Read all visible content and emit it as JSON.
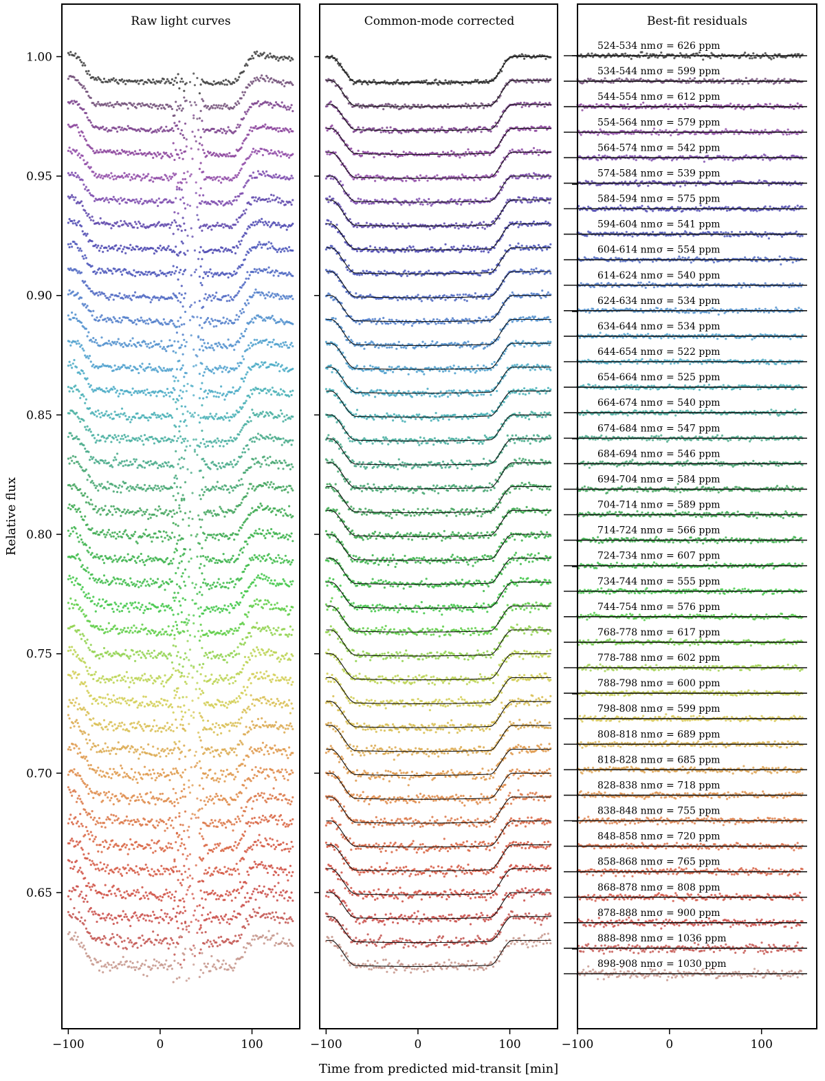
{
  "figure": {
    "ylabel": "Relative flux",
    "xlabel": "Time from predicted mid-transit [min]"
  },
  "chart_data": [
    {
      "type": "scatter",
      "title": "Raw light curves",
      "xlabel": "",
      "ylabel": "Relative flux",
      "xlim": [
        -107,
        152
      ],
      "ylim": [
        0.593,
        1.022
      ],
      "x_ticks": [
        -100,
        0,
        100
      ],
      "x_tick_labels": [
        "−100",
        "0",
        "100"
      ],
      "y_ticks": [
        0.65,
        0.7,
        0.75,
        0.8,
        0.85,
        0.9,
        0.95,
        1.0
      ],
      "y_tick_labels": [
        "0.65",
        "0.70",
        "0.75",
        "0.80",
        "0.85",
        "0.90",
        "0.95",
        "1.00"
      ],
      "grid": false,
      "time_coverage_min": [
        -100,
        145
      ],
      "data_gap_min": [
        28,
        42
      ],
      "ingress_min": [
        -95,
        -68
      ],
      "egress_min": [
        78,
        103
      ],
      "offset_baselines": [
        1.0,
        0.99,
        0.98,
        0.97,
        0.96,
        0.95,
        0.94,
        0.93,
        0.92,
        0.91,
        0.9,
        0.89,
        0.88,
        0.87,
        0.86,
        0.85,
        0.84,
        0.83,
        0.82,
        0.81,
        0.8,
        0.79,
        0.78,
        0.77,
        0.76,
        0.75,
        0.74,
        0.73,
        0.72,
        0.71,
        0.7,
        0.69,
        0.68,
        0.67,
        0.66,
        0.65,
        0.64,
        0.63
      ],
      "transit_depth": 0.0105,
      "colors": [
        "#3b3b3b",
        "#6e4b76",
        "#7a3f8c",
        "#88409a",
        "#8e48a6",
        "#7b49ad",
        "#5c44aa",
        "#4a45b0",
        "#4852b8",
        "#4c66c2",
        "#4e7bc9",
        "#4d8ecc",
        "#4b9fcc",
        "#46a9c4",
        "#43aeb4",
        "#43ad9e",
        "#43a886",
        "#42a46f",
        "#3fa35a",
        "#38a84c",
        "#36b047",
        "#39ba45",
        "#3dc544",
        "#5ccc43",
        "#8ed14a",
        "#bad24e",
        "#d1cc50",
        "#d8bd4f",
        "#dba84c",
        "#de9748",
        "#de8846",
        "#db7443",
        "#d86340",
        "#d4563f",
        "#cf4c40",
        "#c94a45",
        "#c2524d",
        "#c4948a"
      ]
    },
    {
      "type": "scatter",
      "title": "Common-mode corrected",
      "xlabel": "",
      "xlim": [
        -107,
        152
      ],
      "ylim": [
        0.593,
        1.022
      ],
      "x_ticks": [
        -100,
        0,
        100
      ],
      "x_tick_labels": [
        "−100",
        "0",
        "100"
      ],
      "y_ticks": [
        0.65,
        0.7,
        0.75,
        0.8,
        0.85,
        0.9,
        0.95,
        1.0
      ],
      "grid": false,
      "model_line_color": "#111111",
      "time_coverage_min": [
        -100,
        145
      ],
      "offset_baselines": [
        1.0,
        0.99,
        0.98,
        0.97,
        0.96,
        0.95,
        0.94,
        0.93,
        0.92,
        0.91,
        0.9,
        0.89,
        0.88,
        0.87,
        0.86,
        0.85,
        0.84,
        0.83,
        0.82,
        0.81,
        0.8,
        0.79,
        0.78,
        0.77,
        0.76,
        0.75,
        0.74,
        0.73,
        0.72,
        0.71,
        0.7,
        0.69,
        0.68,
        0.67,
        0.66,
        0.65,
        0.64,
        0.63
      ],
      "transit_depth": 0.0105
    },
    {
      "type": "scatter",
      "title": "Best-fit residuals",
      "xlabel": "",
      "xlim": [
        -100,
        160
      ],
      "x_ticks": [
        -100,
        0,
        100
      ],
      "x_tick_labels": [
        "−100",
        "0",
        "100"
      ],
      "grid": false,
      "zero_line_color": "#111111",
      "bands": [
        "524-534 nm",
        "534-544 nm",
        "544-554 nm",
        "554-564 nm",
        "564-574 nm",
        "574-584 nm",
        "584-594 nm",
        "594-604 nm",
        "604-614 nm",
        "614-624 nm",
        "624-634 nm",
        "634-644 nm",
        "644-654 nm",
        "654-664 nm",
        "664-674 nm",
        "674-684 nm",
        "684-694 nm",
        "694-704 nm",
        "704-714 nm",
        "714-724 nm",
        "724-734 nm",
        "734-744 nm",
        "744-754 nm",
        "768-778 nm",
        "778-788 nm",
        "788-798 nm",
        "798-808 nm",
        "808-818 nm",
        "818-828 nm",
        "828-838 nm",
        "838-848 nm",
        "848-858 nm",
        "858-868 nm",
        "868-878 nm",
        "878-888 nm",
        "888-898 nm",
        "898-908 nm"
      ],
      "sigma_labels": [
        "σ = 626 ppm",
        "σ = 599 ppm",
        "σ = 612 ppm",
        "σ = 579 ppm",
        "σ = 542 ppm",
        "σ = 539 ppm",
        "σ = 575 ppm",
        "σ = 541 ppm",
        "σ = 554 ppm",
        "σ = 540 ppm",
        "σ = 534 ppm",
        "σ = 534 ppm",
        "σ = 522 ppm",
        "σ = 525 ppm",
        "σ = 540 ppm",
        "σ = 547 ppm",
        "σ = 546 ppm",
        "σ = 584 ppm",
        "σ = 589 ppm",
        "σ = 566 ppm",
        "σ = 607 ppm",
        "σ = 555 ppm",
        "σ = 576 ppm",
        "σ = 617 ppm",
        "σ = 602 ppm",
        "σ = 600 ppm",
        "σ = 599 ppm",
        "σ = 689 ppm",
        "σ = 685 ppm",
        "σ = 718 ppm",
        "σ = 755 ppm",
        "σ = 720 ppm",
        "σ = 765 ppm",
        "σ = 808 ppm",
        "σ = 900 ppm",
        "σ = 1036 ppm",
        "σ = 1030 ppm"
      ],
      "sigma_ppm": [
        626,
        599,
        612,
        579,
        542,
        539,
        575,
        541,
        554,
        540,
        534,
        534,
        522,
        525,
        540,
        547,
        546,
        584,
        589,
        566,
        607,
        555,
        576,
        617,
        602,
        600,
        599,
        689,
        685,
        718,
        755,
        720,
        765,
        808,
        900,
        1036,
        1030
      ],
      "colors": [
        "#3b3b3b",
        "#6e4b76",
        "#88409a",
        "#8e48a6",
        "#7b49ad",
        "#5c44aa",
        "#4a45b0",
        "#4852b8",
        "#4c66c2",
        "#4e7bc9",
        "#4d8ecc",
        "#4b9fcc",
        "#46a9c4",
        "#43aeb4",
        "#43ad9e",
        "#43a886",
        "#42a46f",
        "#3fa35a",
        "#38a84c",
        "#36b047",
        "#39ba45",
        "#3dc544",
        "#4fc944",
        "#6fce45",
        "#a0d24c",
        "#c4d04f",
        "#d6c550",
        "#d9b34e",
        "#dc9f4a",
        "#de8f47",
        "#dd7c45",
        "#d96a42",
        "#d55b3f",
        "#d04f3f",
        "#ca4a44",
        "#c3504b",
        "#c4948a"
      ]
    }
  ]
}
